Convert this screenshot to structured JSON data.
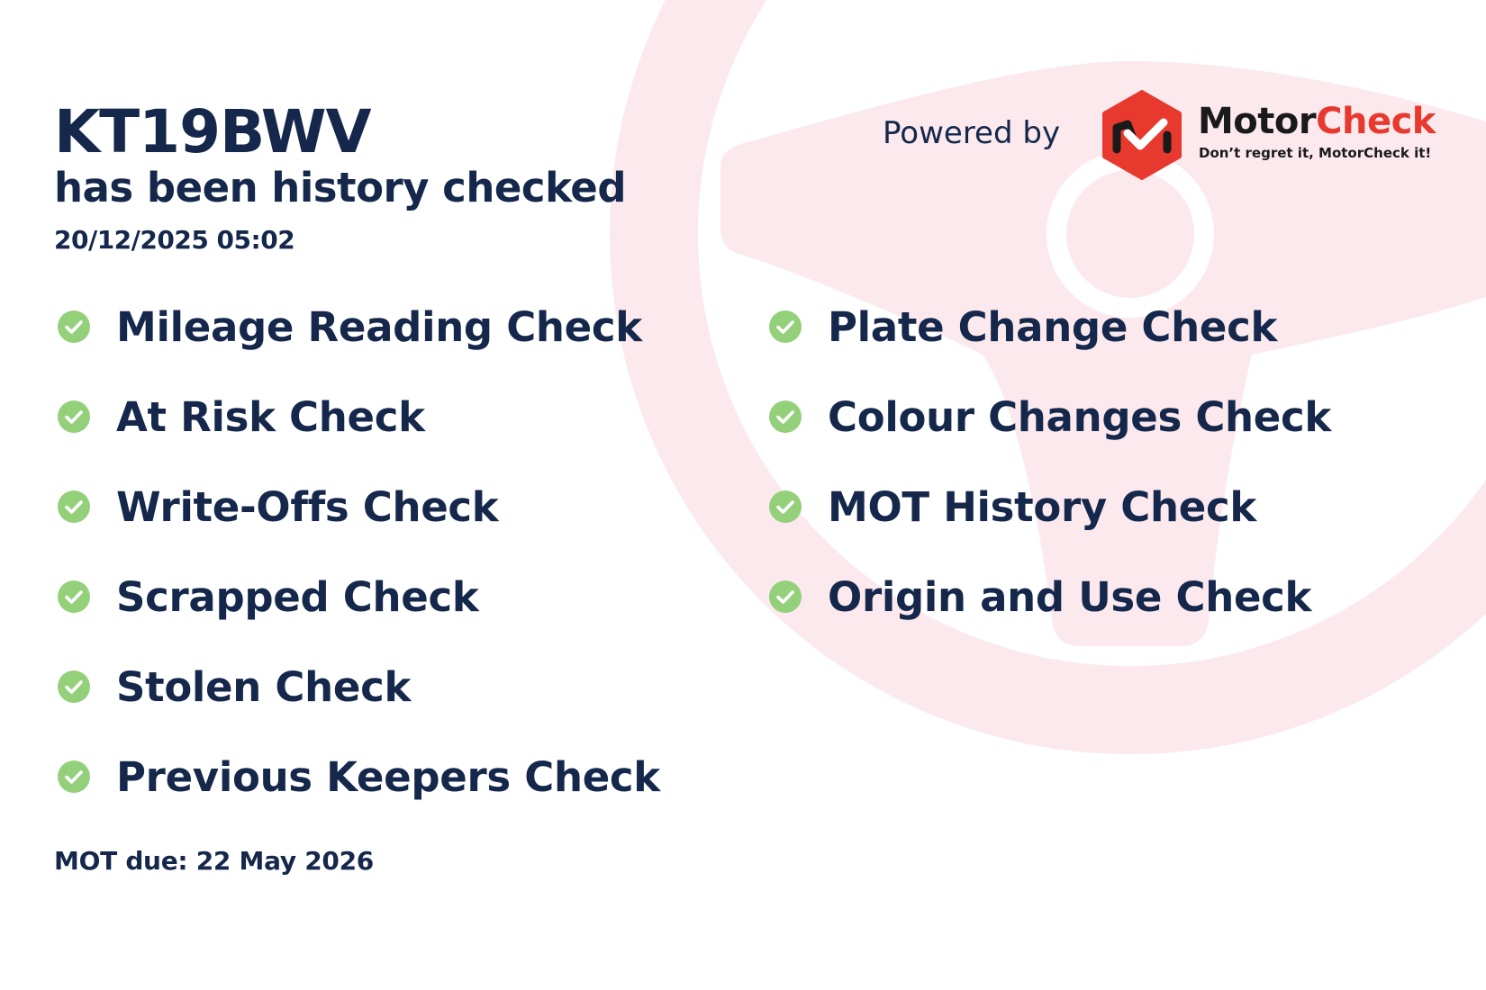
{
  "vehicle": {
    "registration": "KT19BWV",
    "status_text": "has been history checked",
    "checked_at": "20/12/2025 05:02",
    "mot_due": "MOT due: 22 May 2026"
  },
  "branding": {
    "powered_by": "Powered by",
    "brand_part1": "Motor",
    "brand_part2": "Check",
    "tagline": "Don’t regret it, MotorCheck it!",
    "brand_red": "#e8392f",
    "brand_dark": "#1a1a1a"
  },
  "checks_left": [
    {
      "label": "Mileage Reading Check",
      "icon": "check-circle-icon",
      "passed": true
    },
    {
      "label": "At Risk Check",
      "icon": "check-circle-icon",
      "passed": true
    },
    {
      "label": "Write-Offs Check",
      "icon": "check-circle-icon",
      "passed": true
    },
    {
      "label": "Scrapped Check",
      "icon": "check-circle-icon",
      "passed": true
    },
    {
      "label": "Stolen Check",
      "icon": "check-circle-icon",
      "passed": true
    },
    {
      "label": "Previous Keepers Check",
      "icon": "check-circle-icon",
      "passed": true
    }
  ],
  "checks_right": [
    {
      "label": "Plate Change Check",
      "icon": "check-circle-icon",
      "passed": true
    },
    {
      "label": "Colour Changes Check",
      "icon": "check-circle-icon",
      "passed": true
    },
    {
      "label": "MOT History Check",
      "icon": "check-circle-icon",
      "passed": true
    },
    {
      "label": "Origin and Use Check",
      "icon": "check-circle-icon",
      "passed": true
    }
  ],
  "colors": {
    "text": "#15284b",
    "check_green": "#94d07a",
    "background_wheel": "#fbe9ee"
  }
}
